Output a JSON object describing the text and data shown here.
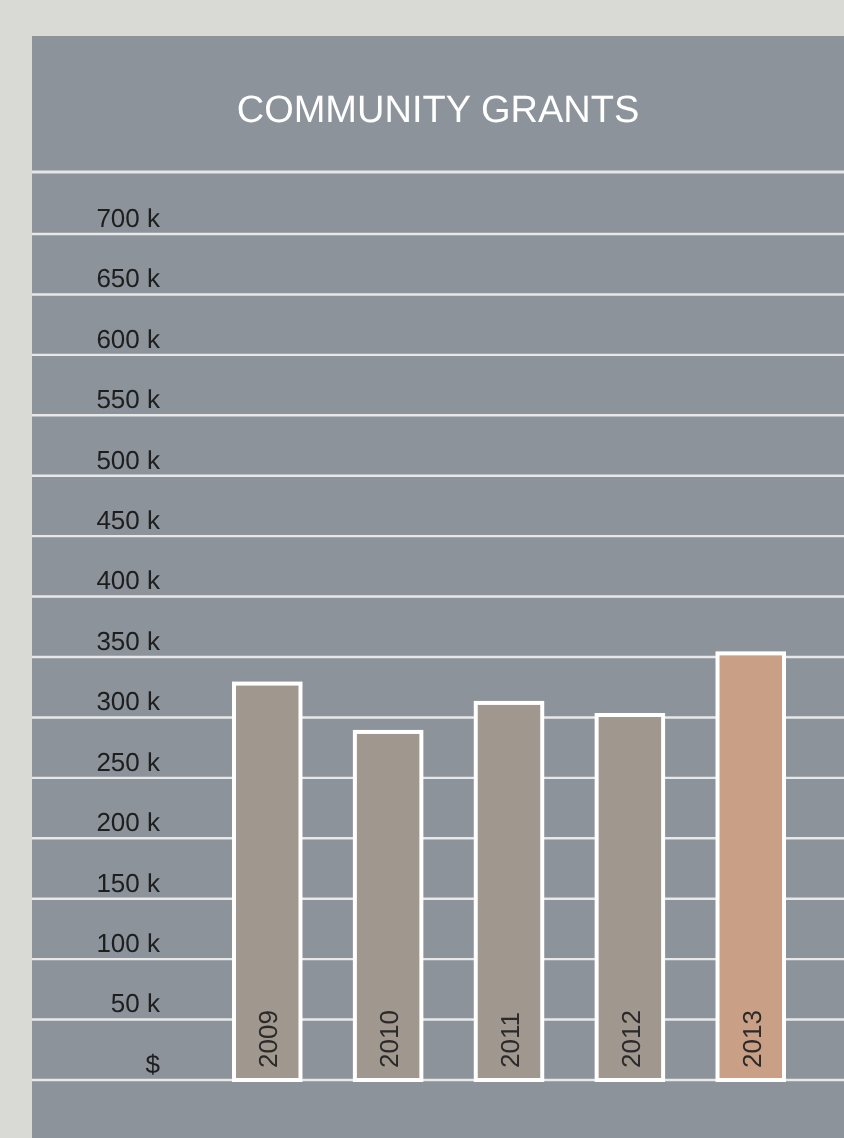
{
  "chart_data": {
    "type": "bar",
    "title": "COMMUNITY GRANTS",
    "categories": [
      "2009",
      "2010",
      "2011",
      "2012",
      "2013"
    ],
    "values": [
      328000,
      288000,
      312000,
      302000,
      353000
    ],
    "colors": [
      "#a0978e",
      "#a0978e",
      "#a0978e",
      "#a0978e",
      "#c9a085"
    ],
    "ylim": [
      0,
      700000
    ],
    "yticks": [
      {
        "value": 0,
        "label": "$"
      },
      {
        "value": 50000,
        "label": "50 k"
      },
      {
        "value": 100000,
        "label": "100 k"
      },
      {
        "value": 150000,
        "label": "150 k"
      },
      {
        "value": 200000,
        "label": "200 k"
      },
      {
        "value": 250000,
        "label": "250 k"
      },
      {
        "value": 300000,
        "label": "300 k"
      },
      {
        "value": 350000,
        "label": "350 k"
      },
      {
        "value": 400000,
        "label": "400 k"
      },
      {
        "value": 450000,
        "label": "450 k"
      },
      {
        "value": 500000,
        "label": "500 k"
      },
      {
        "value": 550000,
        "label": "550 k"
      },
      {
        "value": 600000,
        "label": "600 k"
      },
      {
        "value": 650000,
        "label": "650 k"
      },
      {
        "value": 700000,
        "label": "700 k"
      }
    ],
    "grid": "y"
  }
}
